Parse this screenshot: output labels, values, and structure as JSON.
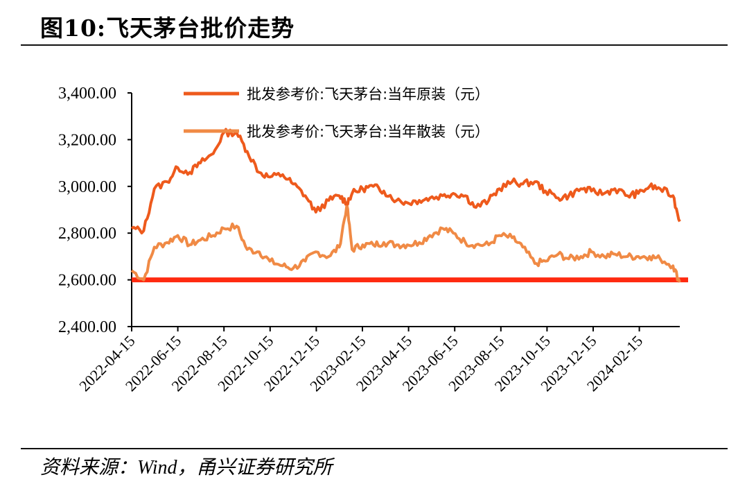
{
  "header": {
    "title": "图10:飞天茅台批价走势"
  },
  "footer": {
    "source": "资料来源：Wind，甬兴证券研究所"
  },
  "colors": {
    "original": "#EE5A1C",
    "loose": "#F08A45",
    "reference_line": "#FF2A10",
    "axis": "#000000"
  },
  "chart_data": {
    "type": "line",
    "title": "图10:飞天茅台批价走势",
    "xlabel": "",
    "ylabel": "",
    "ylim": [
      2400,
      3400
    ],
    "yticks": [
      "3,400.00",
      "3,200.00",
      "3,000.00",
      "2,800.00",
      "2,600.00",
      "2,400.00"
    ],
    "xticks": [
      "2022-04-15",
      "2022-06-15",
      "2022-08-15",
      "2022-10-15",
      "2022-12-15",
      "2023-02-15",
      "2023-04-15",
      "2023-06-15",
      "2023-08-15",
      "2023-10-15",
      "2023-12-15",
      "2024-02-15"
    ],
    "grid": false,
    "legend_position": "top-center",
    "x": [
      "2022-04-15",
      "2022-05-01",
      "2022-05-15",
      "2022-06-01",
      "2022-06-15",
      "2022-07-01",
      "2022-07-15",
      "2022-08-01",
      "2022-08-15",
      "2022-09-01",
      "2022-09-15",
      "2022-10-01",
      "2022-10-15",
      "2022-11-01",
      "2022-11-15",
      "2022-12-01",
      "2022-12-15",
      "2023-01-01",
      "2023-01-15",
      "2023-01-25",
      "2023-02-01",
      "2023-02-15",
      "2023-03-01",
      "2023-03-15",
      "2023-04-01",
      "2023-04-15",
      "2023-05-01",
      "2023-05-15",
      "2023-06-01",
      "2023-06-15",
      "2023-07-01",
      "2023-07-15",
      "2023-08-01",
      "2023-08-15",
      "2023-09-01",
      "2023-09-15",
      "2023-10-01",
      "2023-10-15",
      "2023-11-01",
      "2023-11-15",
      "2023-12-01",
      "2023-12-15",
      "2024-01-01",
      "2024-01-15",
      "2024-02-01",
      "2024-02-15",
      "2024-03-01",
      "2024-03-15",
      "2024-04-01",
      "2024-04-10"
    ],
    "series": [
      {
        "name": "批发参考价:飞天茅台:当年原装（元）",
        "color": "#EE5A1C",
        "values": [
          2820,
          2810,
          2990,
          3020,
          3080,
          3060,
          3100,
          3140,
          3230,
          3230,
          3150,
          3060,
          3040,
          3050,
          3010,
          2960,
          2890,
          2940,
          2960,
          2930,
          2970,
          2990,
          3000,
          2980,
          2940,
          2930,
          2940,
          2950,
          2960,
          2970,
          2960,
          2910,
          2940,
          2990,
          3020,
          3010,
          3020,
          2980,
          2950,
          2960,
          2990,
          2980,
          2970,
          2990,
          2960,
          2970,
          3000,
          2990,
          2960,
          2850
        ]
      },
      {
        "name": "批发参考价:飞天茅台:当年散装（元）",
        "color": "#F08A45",
        "values": [
          2640,
          2600,
          2740,
          2760,
          2790,
          2750,
          2770,
          2790,
          2820,
          2830,
          2730,
          2720,
          2680,
          2660,
          2650,
          2680,
          2720,
          2700,
          2740,
          2920,
          2730,
          2750,
          2750,
          2760,
          2750,
          2750,
          2760,
          2790,
          2820,
          2800,
          2760,
          2750,
          2750,
          2790,
          2780,
          2740,
          2670,
          2680,
          2710,
          2690,
          2700,
          2720,
          2700,
          2710,
          2700,
          2700,
          2700,
          2690,
          2660,
          2590
        ]
      },
      {
        "name": "参考线",
        "color": "#FF2A10",
        "values_constant": 2600
      }
    ]
  }
}
